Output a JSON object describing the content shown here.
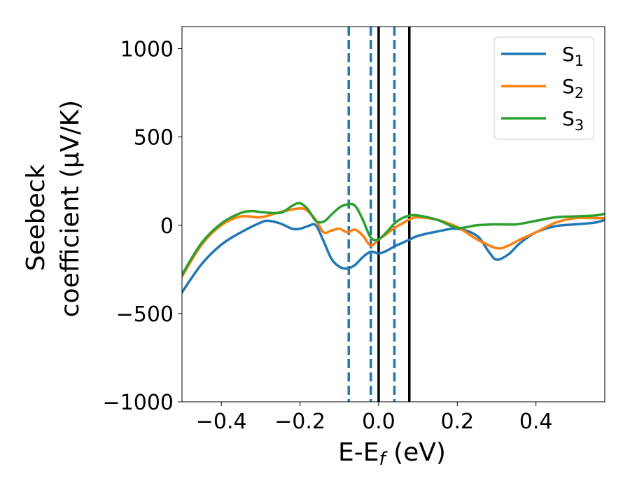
{
  "chart_data": {
    "type": "line",
    "xlabel_main": "E-E",
    "xlabel_sub": "f",
    "xlabel_unit": " (eV)",
    "ylabel_line1": "Seebeck",
    "ylabel_line2": "coefficient  (μV/K)",
    "xlim": [
      -0.5,
      0.575
    ],
    "ylim": [
      -1000,
      1125
    ],
    "xticks": [
      -0.4,
      -0.2,
      0.0,
      0.2,
      0.4
    ],
    "xtick_labels": [
      "−0.4",
      "−0.2",
      "0.0",
      "0.2",
      "0.4"
    ],
    "yticks": [
      -1000,
      -500,
      0,
      500,
      1000
    ],
    "ytick_labels": [
      "−1000",
      "−500",
      "0",
      "500",
      "1000"
    ],
    "legend_position": "top-right",
    "series": [
      {
        "name": "S",
        "sub": "1",
        "color": "#1f77b4",
        "x": [
          -0.5,
          -0.45,
          -0.4,
          -0.35,
          -0.3,
          -0.28,
          -0.25,
          -0.22,
          -0.2,
          -0.18,
          -0.16,
          -0.14,
          -0.12,
          -0.1,
          -0.08,
          -0.06,
          -0.04,
          -0.02,
          0.0,
          0.02,
          0.04,
          0.06,
          0.08,
          0.1,
          0.15,
          0.2,
          0.25,
          0.28,
          0.3,
          0.33,
          0.36,
          0.4,
          0.45,
          0.5,
          0.55,
          0.575
        ],
        "y": [
          -380,
          -220,
          -110,
          -40,
          15,
          25,
          10,
          -20,
          -20,
          -5,
          0,
          -90,
          -190,
          -235,
          -245,
          -225,
          -180,
          -150,
          -160,
          -145,
          -120,
          -100,
          -80,
          -60,
          -35,
          -20,
          -60,
          -150,
          -195,
          -165,
          -100,
          -40,
          -5,
          5,
          15,
          30
        ]
      },
      {
        "name": "S",
        "sub": "2",
        "color": "#ff7f0e",
        "x": [
          -0.5,
          -0.45,
          -0.4,
          -0.35,
          -0.3,
          -0.25,
          -0.2,
          -0.18,
          -0.16,
          -0.14,
          -0.12,
          -0.1,
          -0.08,
          -0.06,
          -0.04,
          -0.02,
          0.0,
          0.02,
          0.04,
          0.06,
          0.08,
          0.1,
          0.15,
          0.2,
          0.25,
          0.3,
          0.33,
          0.36,
          0.4,
          0.45,
          0.5,
          0.55,
          0.575
        ],
        "y": [
          -290,
          -110,
          0,
          50,
          45,
          75,
          95,
          80,
          30,
          -40,
          -30,
          -20,
          -40,
          -25,
          -60,
          -115,
          -80,
          -50,
          -15,
          10,
          35,
          45,
          30,
          -10,
          -80,
          -130,
          -115,
          -80,
          -40,
          15,
          40,
          40,
          40
        ]
      },
      {
        "name": "S",
        "sub": "3",
        "color": "#2ca02c",
        "x": [
          -0.5,
          -0.45,
          -0.4,
          -0.35,
          -0.32,
          -0.3,
          -0.25,
          -0.22,
          -0.2,
          -0.18,
          -0.16,
          -0.14,
          -0.12,
          -0.1,
          -0.08,
          -0.06,
          -0.04,
          -0.02,
          0.0,
          0.02,
          0.04,
          0.06,
          0.08,
          0.1,
          0.15,
          0.2,
          0.25,
          0.3,
          0.35,
          0.4,
          0.45,
          0.5,
          0.55,
          0.575
        ],
        "y": [
          -280,
          -100,
          10,
          70,
          80,
          75,
          70,
          110,
          125,
          90,
          25,
          20,
          60,
          100,
          118,
          110,
          30,
          -70,
          -80,
          -40,
          10,
          40,
          55,
          55,
          30,
          -15,
          0,
          5,
          5,
          25,
          45,
          50,
          55,
          65
        ]
      }
    ],
    "vlines": [
      {
        "x": -0.076,
        "style": "dashed",
        "color": "#1f77b4"
      },
      {
        "x": -0.02,
        "style": "dashed",
        "color": "#1f77b4"
      },
      {
        "x": 0.0,
        "style": "solid",
        "color": "#000000"
      },
      {
        "x": 0.04,
        "style": "dashed",
        "color": "#1f77b4"
      },
      {
        "x": 0.078,
        "style": "solid",
        "color": "#000000"
      }
    ]
  }
}
